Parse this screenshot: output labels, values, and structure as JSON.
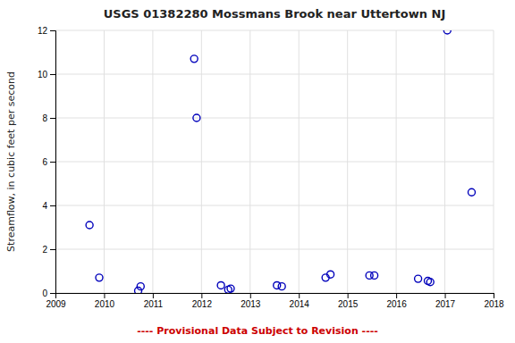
{
  "chart_data": {
    "type": "scatter",
    "title": "USGS 01382280 Mossmans Brook near Uttertown NJ",
    "ylabel": "Streamflow, in cubic feet per second",
    "x": [
      2009.7,
      2009.9,
      2010.7,
      2010.75,
      2011.85,
      2011.9,
      2012.4,
      2012.55,
      2012.6,
      2013.55,
      2013.65,
      2014.55,
      2014.65,
      2015.45,
      2015.55,
      2016.45,
      2016.65,
      2016.7,
      2017.05,
      2017.55
    ],
    "values": [
      3.1,
      0.7,
      0.1,
      0.3,
      10.7,
      8.0,
      0.35,
      0.15,
      0.2,
      0.35,
      0.3,
      0.7,
      0.85,
      0.8,
      0.8,
      0.65,
      0.55,
      0.5,
      12.0,
      4.6
    ],
    "xlim": [
      2009,
      2018
    ],
    "ylim": [
      0,
      12
    ],
    "xticks": [
      2009,
      2010,
      2011,
      2012,
      2013,
      2014,
      2015,
      2016,
      2017,
      2018
    ],
    "yticks": [
      0,
      2,
      4,
      6,
      8,
      10,
      12
    ],
    "grid": true,
    "color": "#0000bb",
    "marker": "open-circle",
    "annotations": [
      {
        "text": "---- Provisional Data Subject to Revision ----",
        "color": "#cc0000"
      }
    ]
  }
}
